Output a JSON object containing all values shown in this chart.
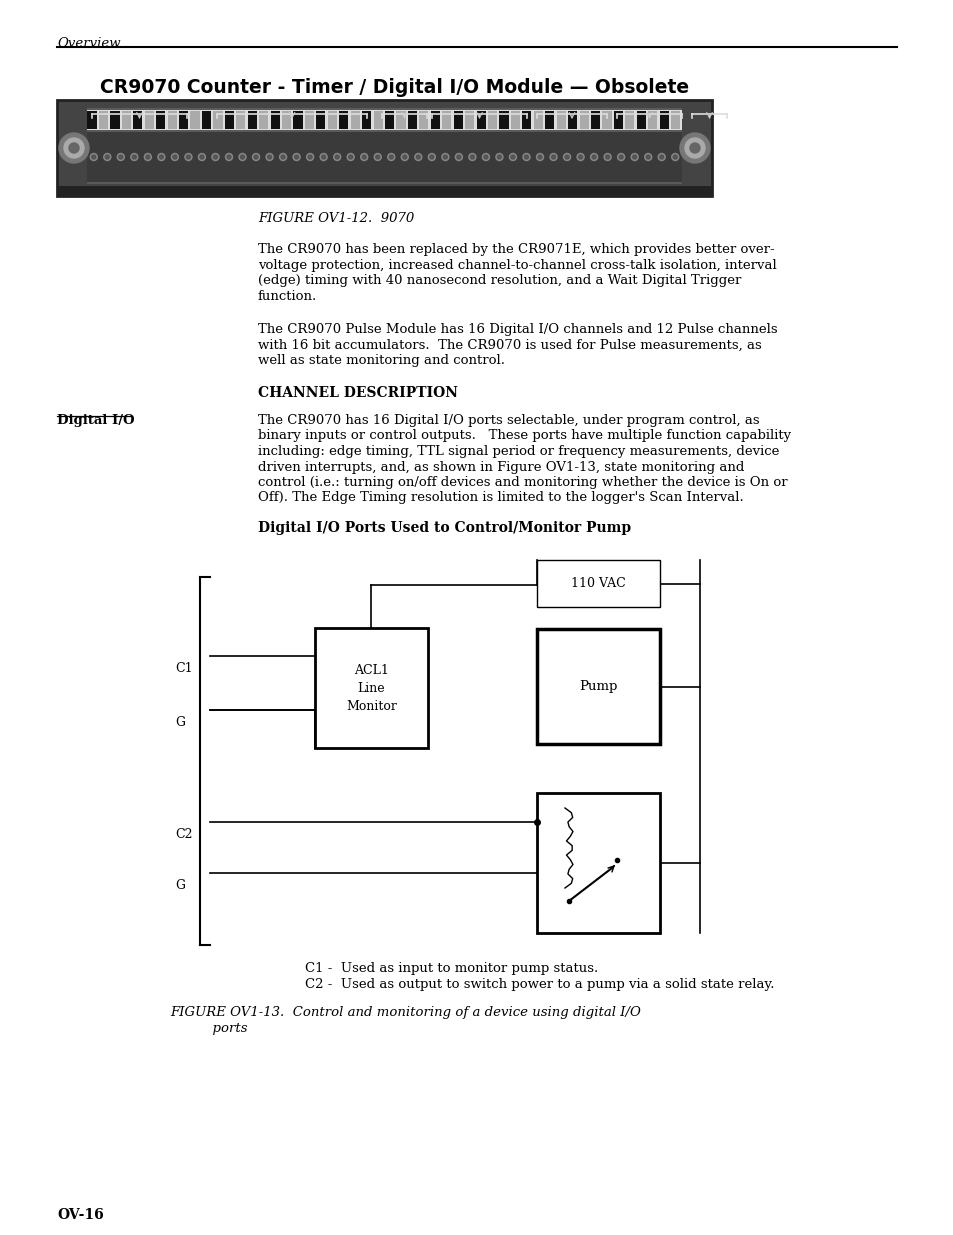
{
  "page_header_text": "Overview",
  "title": "CR9070 Counter - Timer / Digital I/O Module — Obsolete",
  "figure1_caption": "FIGURE OV1-12.  9070",
  "para1_lines": [
    "The CR9070 has been replaced by the CR9071E, which provides better over-",
    "voltage protection, increased channel-to-channel cross-talk isolation, interval",
    "(edge) timing with 40 nanosecond resolution, and a Wait Digital Trigger",
    "function."
  ],
  "para2_lines": [
    "The CR9070 Pulse Module has 16 Digital I/O channels and 12 Pulse channels",
    "with 16 bit accumulators.  The CR9070 is used for Pulse measurements, as",
    "well as state monitoring and control."
  ],
  "section_header": "CHANNEL DESCRIPTION",
  "label_digital_io": "Digital I/O",
  "digital_io_lines": [
    "The CR9070 has 16 Digital I/O ports selectable, under program control, as",
    "binary inputs or control outputs.   These ports have multiple function capability",
    "including: edge timing, TTL signal period or frequency measurements, device",
    "driven interrupts, and, as shown in Figure OV1-13, state monitoring and",
    "control (i.e.: turning on/off devices and monitoring whether the device is On or",
    "Off). The Edge Timing resolution is limited to the logger's Scan Interval."
  ],
  "diagram_title": "Digital I/O Ports Used to Control/Monitor Pump",
  "c1_label": "C1",
  "g1_label": "G",
  "c2_label": "C2",
  "g2_label": "G",
  "acl_text": "ACL1\nLine\nMonitor",
  "pump_text": "Pump",
  "vac_text": "110 VAC",
  "caption_c1": "C1 -  Used as input to monitor pump status.",
  "caption_c2": "C2 -  Used as output to switch power to a pump via a solid state relay.",
  "figure2_caption_line1": "FIGURE OV1-13.  Control and monitoring of a device using digital I/O",
  "figure2_caption_line2": "          ports",
  "footer_text": "OV-16",
  "bg_color": "#ffffff",
  "text_color": "#000000"
}
